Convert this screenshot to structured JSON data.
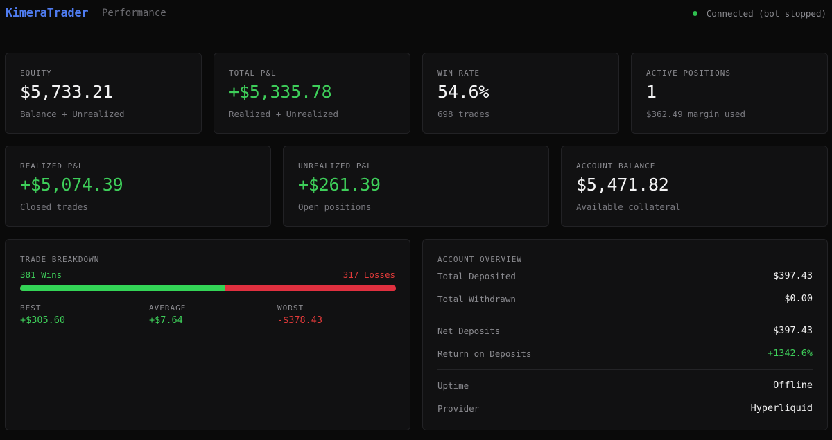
{
  "header": {
    "brand": "KimeraTrader",
    "page": "Performance",
    "status": "Connected (bot stopped)"
  },
  "stats_row1": [
    {
      "label": "EQUITY",
      "value": "$5,733.21",
      "sub": "Balance + Unrealized"
    },
    {
      "label": "TOTAL P&L",
      "value": "+$5,335.78",
      "sub": "Realized + Unrealized"
    },
    {
      "label": "WIN RATE",
      "value": "54.6%",
      "sub": "698 trades"
    },
    {
      "label": "ACTIVE POSITIONS",
      "value": "1",
      "sub": "$362.49 margin used"
    }
  ],
  "stats_row2": [
    {
      "label": "REALIZED P&L",
      "value": "+$5,074.39",
      "sub": "Closed trades"
    },
    {
      "label": "UNREALIZED P&L",
      "value": "+$261.39",
      "sub": "Open positions"
    },
    {
      "label": "ACCOUNT BALANCE",
      "value": "$5,471.82",
      "sub": "Available collateral"
    }
  ],
  "breakdown": {
    "title": "TRADE BREAKDOWN",
    "wins_label": "381 Wins",
    "losses_label": "317 Losses",
    "wins": 381,
    "losses": 317,
    "best_label": "BEST",
    "best_value": "+$305.60",
    "average_label": "AVERAGE",
    "average_value": "+$7.64",
    "worst_label": "WORST",
    "worst_value": "-$378.43"
  },
  "overview": {
    "title": "ACCOUNT OVERVIEW",
    "rows": [
      {
        "label": "Total Deposited",
        "value": "$397.43"
      },
      {
        "label": "Total Withdrawn",
        "value": "$0.00"
      },
      {
        "label": "Net Deposits",
        "value": "$397.43"
      },
      {
        "label": "Return on Deposits",
        "value": "+1342.6%"
      },
      {
        "label": "Uptime",
        "value": "Offline"
      },
      {
        "label": "Provider",
        "value": "Hyperliquid"
      }
    ]
  },
  "colors": {
    "accent": "#4f7cf0",
    "positive": "#3ecf5a",
    "negative": "#e23a3a",
    "status_ok": "#2fbf4f"
  }
}
